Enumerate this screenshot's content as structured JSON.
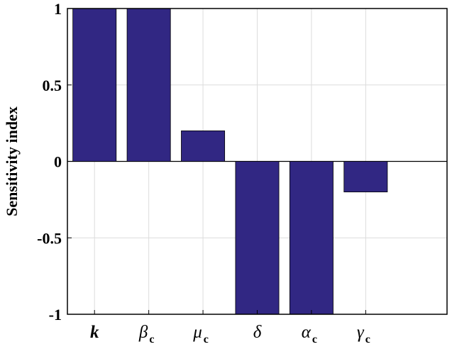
{
  "chart_data": {
    "type": "bar",
    "categories": [
      {
        "base": "k",
        "sub": ""
      },
      {
        "base": "β",
        "sub": "c"
      },
      {
        "base": "μ",
        "sub": "c"
      },
      {
        "base": "δ",
        "sub": ""
      },
      {
        "base": "α",
        "sub": "c"
      },
      {
        "base": "γ",
        "sub": "c"
      }
    ],
    "values": [
      1,
      1,
      0.2,
      -1,
      -1,
      -0.2
    ],
    "title": "",
    "xlabel": "",
    "ylabel": "Sensitivity index",
    "ylim": [
      -1,
      1
    ],
    "yticks": [
      1,
      0.5,
      0,
      -0.5,
      -1
    ],
    "ytick_labels": [
      "1",
      "0.5",
      "0",
      "-0.5",
      "-1"
    ],
    "xlim": [
      0.5,
      7.5
    ],
    "grid": true,
    "bar_color": "#312783",
    "bar_edge_color": "#000000"
  }
}
